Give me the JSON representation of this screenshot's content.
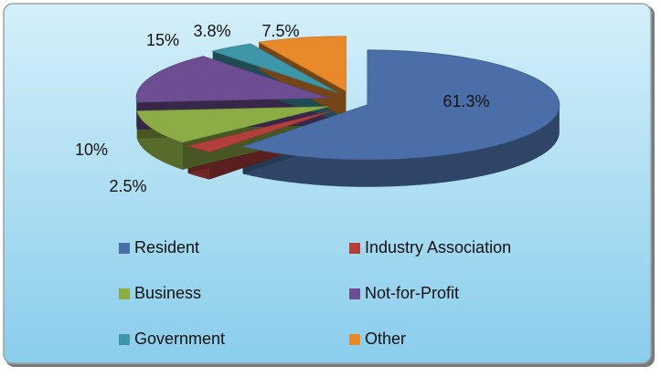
{
  "chart_data": {
    "type": "pie",
    "categories": [
      "Resident",
      "Industry Association",
      "Business",
      "Not-for-Profit",
      "Government",
      "Other"
    ],
    "values": [
      61.3,
      2.5,
      10,
      15,
      3.8,
      7.5
    ],
    "value_labels": [
      "61.3%",
      "2.5%",
      "10%",
      "15%",
      "3.8%",
      "7.5%"
    ],
    "colors": [
      "#4a6fa8",
      "#b23f3b",
      "#8cad45",
      "#6e4e92",
      "#3d97a8",
      "#e88a2c"
    ],
    "legend": "bottom"
  }
}
